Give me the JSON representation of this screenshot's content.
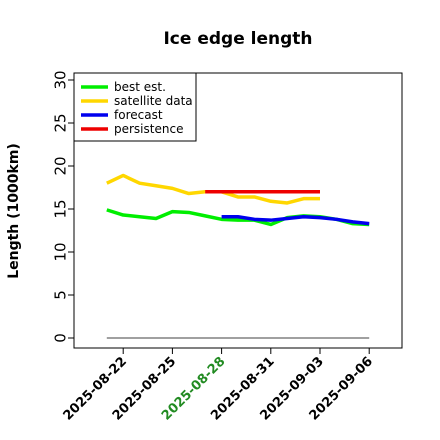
{
  "chart_data": {
    "type": "line",
    "title": "Ice edge length",
    "xlabel": "",
    "ylabel": "Length (1000km)",
    "ylim": [
      0,
      30
    ],
    "yticks": [
      0,
      5,
      10,
      15,
      20,
      25,
      30
    ],
    "xlim": [
      "2025-08-19",
      "2025-09-08"
    ],
    "xticks": [
      "2025-08-22",
      "2025-08-25",
      "2025-08-28",
      "2025-08-31",
      "2025-09-03",
      "2025-09-06"
    ],
    "highlighted_xtick": "2025-08-28",
    "highlight_color": "#228b22",
    "grid": false,
    "legend_position": "top-left",
    "series": [
      {
        "name": "best est.",
        "color": "#00ee00",
        "x": [
          "2025-08-21",
          "2025-08-22",
          "2025-08-23",
          "2025-08-24",
          "2025-08-25",
          "2025-08-26",
          "2025-08-27",
          "2025-08-28",
          "2025-08-29",
          "2025-08-30",
          "2025-08-31",
          "2025-09-01",
          "2025-09-02",
          "2025-09-03",
          "2025-09-04",
          "2025-09-05",
          "2025-09-06"
        ],
        "values": [
          14.9,
          14.3,
          14.1,
          13.9,
          14.7,
          14.6,
          14.2,
          13.8,
          13.7,
          13.7,
          13.2,
          14.0,
          14.2,
          14.1,
          13.8,
          13.3,
          13.2
        ]
      },
      {
        "name": "satellite data",
        "color": "#ffd700",
        "x": [
          "2025-08-21",
          "2025-08-22",
          "2025-08-23",
          "2025-08-24",
          "2025-08-25",
          "2025-08-26",
          "2025-08-27",
          "2025-08-28",
          "2025-08-29",
          "2025-08-30",
          "2025-08-31",
          "2025-09-01",
          "2025-09-02",
          "2025-09-03"
        ],
        "values": [
          18.0,
          18.9,
          18.0,
          17.7,
          17.4,
          16.8,
          17.0,
          17.0,
          16.4,
          16.4,
          15.9,
          15.7,
          16.2,
          16.2
        ]
      },
      {
        "name": "forecast",
        "color": "#0000ee",
        "x": [
          "2025-08-28",
          "2025-08-29",
          "2025-08-30",
          "2025-08-31",
          "2025-09-01",
          "2025-09-02",
          "2025-09-03",
          "2025-09-04",
          "2025-09-05",
          "2025-09-06"
        ],
        "values": [
          14.1,
          14.1,
          13.8,
          13.7,
          13.9,
          14.1,
          14.0,
          13.8,
          13.5,
          13.3
        ]
      },
      {
        "name": "persistence",
        "color": "#ee0000",
        "x": [
          "2025-08-27",
          "2025-09-03"
        ],
        "values": [
          17.0,
          17.0
        ]
      }
    ],
    "reference_line": {
      "value": 0,
      "x": [
        "2025-08-21",
        "2025-09-06"
      ],
      "color": "#808080"
    }
  }
}
